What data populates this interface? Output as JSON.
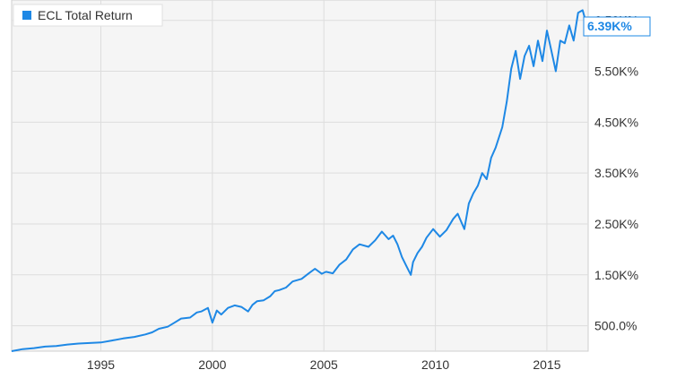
{
  "chart_data": {
    "type": "line",
    "title": "",
    "xlabel": "",
    "ylabel": "",
    "legend": {
      "position": "top-left",
      "entries": [
        "ECL Total Return"
      ]
    },
    "grid": true,
    "xlim": [
      1991.0,
      2016.85
    ],
    "ylim": [
      0,
      6900
    ],
    "x_ticks": [
      1995,
      2000,
      2005,
      2010,
      2015
    ],
    "x_tick_labels": [
      "1995",
      "2000",
      "2005",
      "2010",
      "2015"
    ],
    "y_ticks": [
      500,
      1500,
      2500,
      3500,
      4500,
      5500,
      6500
    ],
    "y_tick_labels": [
      "500.0%",
      "1.50K%",
      "2.50K%",
      "3.50K%",
      "4.50K%",
      "5.50K%",
      "6.50K%"
    ],
    "last_value_label": "6.39K%",
    "series": [
      {
        "name": "ECL Total Return",
        "color": "#1e88e5",
        "x": [
          1991.0,
          1991.5,
          1992.0,
          1992.5,
          1993.0,
          1993.5,
          1994.0,
          1994.5,
          1995.0,
          1995.5,
          1996.0,
          1996.5,
          1997.0,
          1997.3,
          1997.6,
          1998.0,
          1998.3,
          1998.6,
          1999.0,
          1999.3,
          1999.5,
          1999.8,
          2000.0,
          2000.2,
          2000.4,
          2000.7,
          2001.0,
          2001.3,
          2001.6,
          2001.8,
          2002.0,
          2002.3,
          2002.6,
          2002.8,
          2003.0,
          2003.3,
          2003.6,
          2004.0,
          2004.3,
          2004.6,
          2004.9,
          2005.1,
          2005.4,
          2005.7,
          2006.0,
          2006.3,
          2006.6,
          2007.0,
          2007.3,
          2007.6,
          2007.9,
          2008.1,
          2008.3,
          2008.5,
          2008.7,
          2008.9,
          2009.0,
          2009.2,
          2009.4,
          2009.6,
          2009.9,
          2010.2,
          2010.5,
          2010.8,
          2011.0,
          2011.3,
          2011.5,
          2011.7,
          2011.9,
          2012.1,
          2012.3,
          2012.5,
          2012.7,
          2013.0,
          2013.2,
          2013.4,
          2013.6,
          2013.8,
          2014.0,
          2014.2,
          2014.4,
          2014.6,
          2014.8,
          2015.0,
          2015.2,
          2015.4,
          2015.6,
          2015.8,
          2016.0,
          2016.2,
          2016.4,
          2016.6,
          2016.8
        ],
        "y": [
          0,
          40,
          60,
          90,
          100,
          130,
          150,
          160,
          170,
          210,
          250,
          280,
          330,
          370,
          440,
          480,
          560,
          640,
          660,
          760,
          780,
          850,
          560,
          800,
          720,
          850,
          900,
          870,
          780,
          910,
          980,
          1000,
          1080,
          1180,
          1200,
          1250,
          1370,
          1420,
          1520,
          1620,
          1520,
          1560,
          1530,
          1700,
          1800,
          2000,
          2100,
          2050,
          2180,
          2350,
          2200,
          2270,
          2100,
          1850,
          1670,
          1500,
          1750,
          1930,
          2050,
          2230,
          2400,
          2250,
          2380,
          2600,
          2700,
          2400,
          2900,
          3100,
          3250,
          3500,
          3380,
          3800,
          4000,
          4400,
          4900,
          5550,
          5900,
          5350,
          5800,
          6000,
          5600,
          6100,
          5700,
          6300,
          5900,
          5500,
          6100,
          6050,
          6400,
          6100,
          6650,
          6700,
          6390
        ]
      }
    ]
  }
}
